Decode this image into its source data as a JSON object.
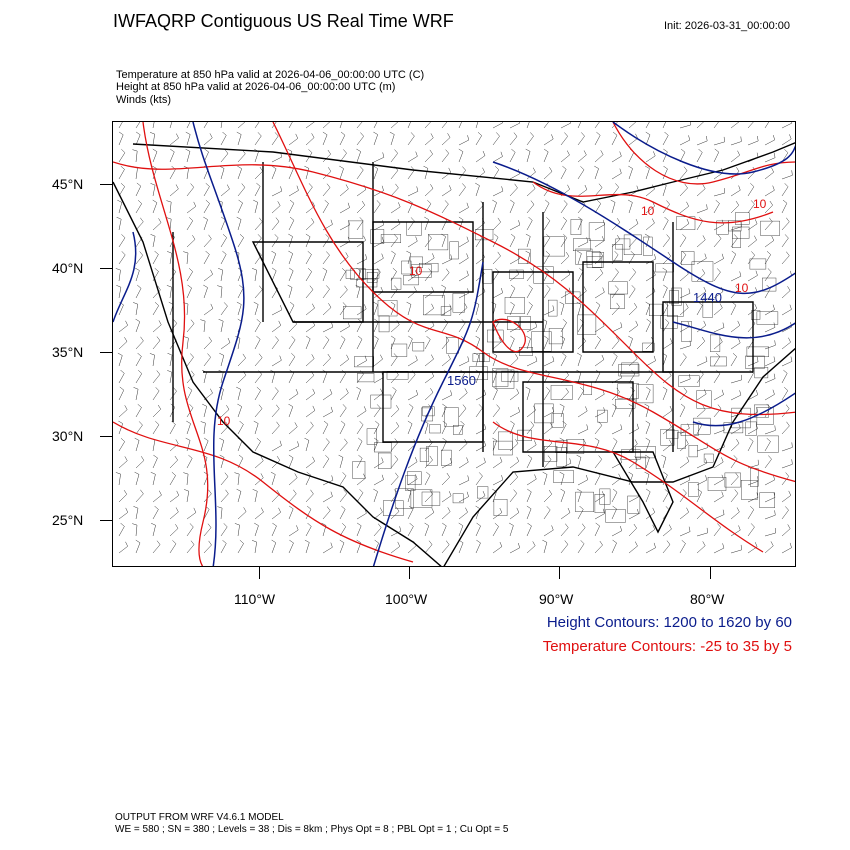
{
  "header": {
    "title": "IWFAQRP Contiguous US Real Time WRF",
    "init": "Init: 2026-03-31_00:00:00"
  },
  "fields": [
    "Temperature at 850 hPa valid at 2026-04-06_00:00:00 UTC   (C)",
    "Height at 850 hPa valid at 2026-04-06_00:00:00 UTC   (m)",
    "Winds   (kts)"
  ],
  "map": {
    "lat_labels": [
      "45°N",
      "40°N",
      "35°N",
      "30°N",
      "25°N"
    ],
    "lon_labels": [
      "110°W",
      "100°W",
      "90°W",
      "80°W"
    ],
    "contour_labels": {
      "height": [
        "1560",
        "1440"
      ],
      "temperature": [
        "10",
        "10",
        "10",
        "10",
        "10"
      ]
    },
    "colors": {
      "height": "#0a1c8c",
      "temperature": "#e01010",
      "boundaries": "#000000"
    }
  },
  "legend": {
    "height": "Height Contours: 1200 to 1620 by 60",
    "temperature": "Temperature Contours: -25 to 35 by 5"
  },
  "footer": {
    "line1": "OUTPUT FROM WRF V4.6.1 MODEL",
    "line2": "WE = 580 ; SN = 380 ; Levels = 38 ; Dis = 8km ; Phys Opt = 8 ; PBL Opt = 1 ; Cu Opt = 5"
  }
}
